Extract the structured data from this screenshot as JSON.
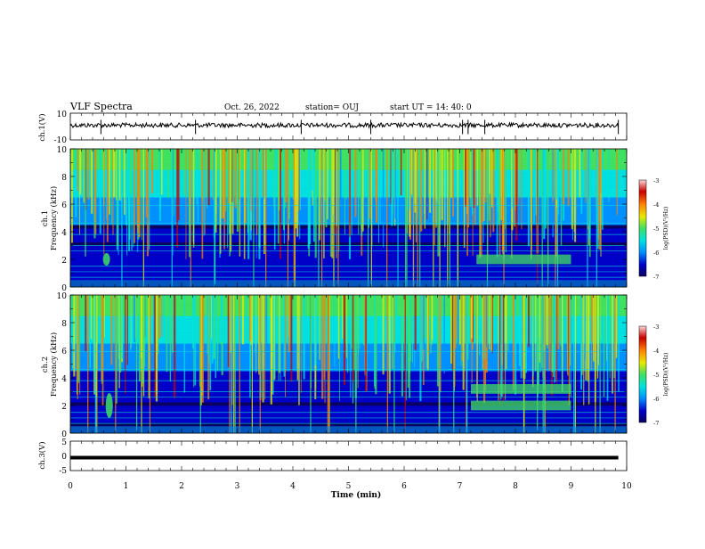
{
  "header": {
    "title": "VLF Spectra",
    "date": "Oct. 26, 2022",
    "station": "station= OUJ",
    "start": "start  UT =   14: 40: 0"
  },
  "chart_data": [
    {
      "type": "line",
      "panel": "ch1-waveform",
      "ylabel": "ch.1(V)",
      "ylim": [
        -10,
        10
      ],
      "ytick_labels": [
        "10",
        "-10"
      ],
      "xlim": [
        0,
        10
      ],
      "series": [
        {
          "values_approx": 1,
          "spikes_min": [
            0.55,
            2.25,
            4.15,
            5.4,
            7.05,
            7.15,
            7.45,
            9.85
          ]
        }
      ]
    },
    {
      "type": "heatmap",
      "panel": "ch1-spectrogram",
      "ylabel": [
        "ch.1",
        "Frequency (kHz)"
      ],
      "ylim": [
        0,
        10
      ],
      "xlim": [
        0,
        10
      ],
      "ytick_labels": [
        "0",
        "2",
        "4",
        "6",
        "8",
        "10"
      ],
      "colorbar": {
        "label": "log(PSD)(V²/Hz)",
        "range": [
          -7,
          -3
        ],
        "tick_labels": [
          "-3",
          "-4",
          "-5",
          "-6",
          "-7"
        ]
      },
      "features": {
        "burst_low_freq": {
          "t_min": 0.65,
          "f_khz": 2.0
        },
        "chorus_band": {
          "t_min": [
            7.3,
            9.0
          ],
          "f_khz": 2.0
        }
      }
    },
    {
      "type": "heatmap",
      "panel": "ch2-spectrogram",
      "ylabel": [
        "ch.2",
        "Frequency (kHz)"
      ],
      "ylim": [
        0,
        10
      ],
      "xlim": [
        0,
        10
      ],
      "ytick_labels": [
        "0",
        "2",
        "4",
        "6",
        "8",
        "10"
      ],
      "colorbar": {
        "label": "log(PSD)(V²/Hz)",
        "range": [
          -7,
          -3
        ],
        "tick_labels": [
          "-3",
          "-4",
          "-5",
          "-6",
          "-7"
        ]
      },
      "features": {
        "burst_low_freq": {
          "t_min": 0.7,
          "f_khz": 2.0
        },
        "chorus_band": {
          "t_min": [
            7.2,
            9.0
          ],
          "f_khz": [
            2.0,
            3.2
          ]
        }
      }
    },
    {
      "type": "line",
      "panel": "ch3-waveform",
      "ylabel": "ch.3(V)",
      "ylim": [
        -5,
        5
      ],
      "ytick_labels": [
        "5",
        "0",
        "-5"
      ],
      "xlim": [
        0,
        10
      ],
      "series": [
        {
          "constant_v": -0.6,
          "x_range_min": [
            0,
            9.85
          ]
        }
      ]
    }
  ],
  "x_axis": {
    "label": "Time (min)",
    "tick_labels": [
      "0",
      "1",
      "2",
      "3",
      "4",
      "5",
      "6",
      "7",
      "8",
      "9",
      "10"
    ]
  },
  "colors": {
    "colormap": [
      "#0a0060",
      "#0000c8",
      "#0090ff",
      "#00e0e0",
      "#40e060",
      "#e8e800",
      "#ff8000",
      "#c80000",
      "#ffd8d8"
    ]
  }
}
